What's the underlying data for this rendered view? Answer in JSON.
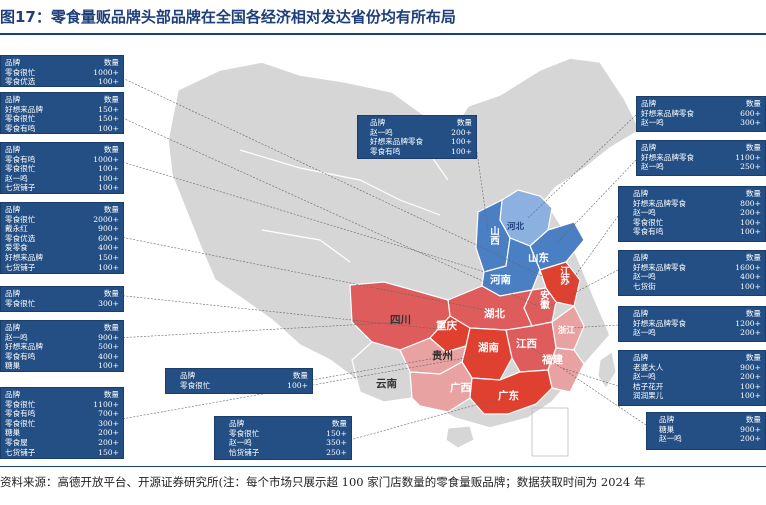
{
  "title": "图17：零食量贩品牌头部品牌在全国各经济相对发达省份均有所布局",
  "footer": "资料来源：高德开放平台、开源证券研究所(注：每个市场只展示超 100 家门店数量的零食量贩品牌；数据获取时间为 2024 年",
  "header": {
    "brand": "品牌",
    "count": "数量"
  },
  "colors": {
    "deep_red": "#e04030",
    "red": "#de5c5c",
    "light_red": "#e9a2a2",
    "blue": "#4a7fc4",
    "light_blue": "#8cb0e0",
    "grey": "#d6d6d6",
    "box": "#234f85"
  },
  "provinces": [
    {
      "id": "hebei",
      "label": "河北"
    },
    {
      "id": "shanxi",
      "label": "山西"
    },
    {
      "id": "shandong",
      "label": "山东"
    },
    {
      "id": "henan",
      "label": "河南"
    },
    {
      "id": "jiangsu",
      "label": "江苏"
    },
    {
      "id": "anhui",
      "label": "安徽"
    },
    {
      "id": "zhejiang",
      "label": "浙江"
    },
    {
      "id": "hubei",
      "label": "湖北"
    },
    {
      "id": "sichuan",
      "label": "四川"
    },
    {
      "id": "chongqing",
      "label": "重庆"
    },
    {
      "id": "hunan",
      "label": "湖南"
    },
    {
      "id": "jiangxi",
      "label": "江西"
    },
    {
      "id": "fujian",
      "label": "福建"
    },
    {
      "id": "guizhou",
      "label": "贵州"
    },
    {
      "id": "yunnan",
      "label": "云南"
    },
    {
      "id": "guangxi",
      "label": "广西"
    },
    {
      "id": "guangdong",
      "label": "广东"
    }
  ],
  "boxes": [
    {
      "id": "box-jiangsu",
      "rows": [
        [
          "品牌",
          "数量"
        ],
        [
          "零食很忙",
          "1000+"
        ],
        [
          "零食优选",
          "100+"
        ]
      ]
    },
    {
      "id": "box-anhui",
      "rows": [
        [
          "品牌",
          "数量"
        ],
        [
          "好想来品牌",
          "150+"
        ],
        [
          "零食很忙",
          "150+"
        ],
        [
          "零食有鸣",
          "100+"
        ]
      ]
    },
    {
      "id": "box-henan",
      "rows": [
        [
          "品牌",
          "数量"
        ],
        [
          "零食有鸣",
          "1000+"
        ],
        [
          "零食很忙",
          "100+"
        ],
        [
          "赵一鸣",
          "100+"
        ],
        [
          "七货铺子",
          "100+"
        ]
      ]
    },
    {
      "id": "box-hubei",
      "rows": [
        [
          "品牌",
          "数量"
        ],
        [
          "零食很忙",
          "2000+"
        ],
        [
          "戴永红",
          "900+"
        ],
        [
          "零食优选",
          "600+"
        ],
        [
          "爱零食",
          "400+"
        ],
        [
          "好想来品牌",
          "150+"
        ],
        [
          "七货铺子",
          "100+"
        ]
      ]
    },
    {
      "id": "box-chongqing",
      "rows": [
        [
          "品牌",
          "数量"
        ],
        [
          "零食很忙",
          "300+"
        ]
      ]
    },
    {
      "id": "box-sichuan",
      "rows": [
        [
          "品牌",
          "数量"
        ],
        [
          "赵一鸣",
          "900+"
        ],
        [
          "好想来品牌",
          "500+"
        ],
        [
          "零食有鸣",
          "400+"
        ],
        [
          "糖巢",
          "100+"
        ]
      ]
    },
    {
      "id": "box-hunan",
      "rows": [
        [
          "品牌",
          "数量"
        ],
        [
          "零食很忙",
          "1100+"
        ],
        [
          "零食有鸣",
          "700+"
        ],
        [
          "零食很忙",
          "300+"
        ],
        [
          "糖巢",
          "200+"
        ],
        [
          "零食屋",
          "200+"
        ],
        [
          "七货铺子",
          "150+"
        ]
      ]
    },
    {
      "id": "box-guizhou",
      "rows": [
        [
          "品牌",
          "数量"
        ],
        [
          "零食很忙",
          "100+"
        ]
      ]
    },
    {
      "id": "box-guangdong",
      "rows": [
        [
          "品牌",
          "数量"
        ],
        [
          "零食很忙",
          "150+"
        ],
        [
          "赵一鸣",
          "350+"
        ],
        [
          "恰货铺子",
          "250+"
        ]
      ]
    },
    {
      "id": "box-shanxi",
      "rows": [
        [
          "品牌",
          "数量"
        ],
        [
          "赵一鸣",
          "200+"
        ],
        [
          "好想来品牌零食",
          "100+"
        ],
        [
          "零食有鸣",
          "100+"
        ]
      ]
    },
    {
      "id": "box-hebei",
      "rows": [
        [
          "品牌",
          "数量"
        ],
        [
          "好想来品牌零食",
          "600+"
        ],
        [
          "赵一鸣",
          "300+"
        ]
      ]
    },
    {
      "id": "box-shandong",
      "rows": [
        [
          "品牌",
          "数量"
        ],
        [
          "好想来品牌零食",
          "1100+"
        ],
        [
          "赵一鸣",
          "250+"
        ]
      ]
    },
    {
      "id": "box-jiangsu-r",
      "rows": [
        [
          "品牌",
          "数量"
        ],
        [
          "好想来品牌零食",
          "800+"
        ],
        [
          "赵一鸣",
          "200+"
        ],
        [
          "零食很忙",
          "100+"
        ],
        [
          "零食有鸣",
          "100+"
        ]
      ]
    },
    {
      "id": "box-anhui-r",
      "rows": [
        [
          "品牌",
          "数量"
        ],
        [
          "好想来品牌零食",
          "1600+"
        ],
        [
          "赵一鸣",
          "400+"
        ],
        [
          "七货街",
          "100+"
        ]
      ]
    },
    {
      "id": "box-zhejiang",
      "rows": [
        [
          "品牌",
          "数量"
        ],
        [
          "好想来品牌零食",
          "1200+"
        ],
        [
          "赵一鸣",
          "200+"
        ]
      ]
    },
    {
      "id": "box-fujian",
      "rows": [
        [
          "品牌",
          "数量"
        ],
        [
          "老婆大人",
          "900+"
        ],
        [
          "赵一鸣",
          "200+"
        ],
        [
          "桔子花开",
          "100+"
        ],
        [
          "润润果儿",
          "100+"
        ]
      ]
    },
    {
      "id": "box-jiangxi",
      "rows": [
        [
          "品牌",
          "数量"
        ],
        [
          "糖巢",
          "900+"
        ],
        [
          "赵一鸣",
          "200+"
        ]
      ]
    }
  ]
}
